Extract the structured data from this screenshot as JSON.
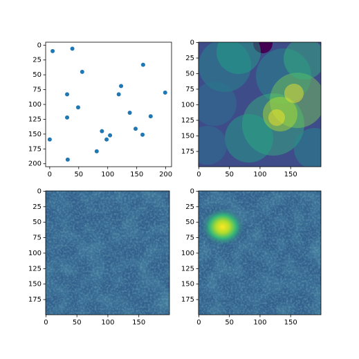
{
  "chart_data": [
    {
      "type": "scatter",
      "color": "#1f77b4",
      "x": [
        5,
        39,
        56,
        161,
        30,
        123,
        119,
        199,
        49,
        138,
        30,
        174,
        148,
        90,
        104,
        160,
        98,
        0,
        81,
        31
      ],
      "values": [
        10,
        6,
        45,
        33,
        83,
        69,
        83,
        80,
        105,
        114,
        122,
        120,
        141,
        145,
        152,
        151,
        159,
        159,
        179,
        193
      ],
      "xlim": [
        -7,
        210
      ],
      "ylim": [
        205,
        -5
      ],
      "xticks": [
        0,
        50,
        100,
        150,
        200
      ],
      "yticks": [
        0,
        25,
        50,
        75,
        100,
        125,
        150,
        175,
        200
      ]
    },
    {
      "type": "image",
      "xlim": [
        -0.5,
        199.5
      ],
      "ylim": [
        199.5,
        -0.5
      ],
      "xticks": [
        0,
        50,
        100,
        150
      ],
      "yticks": [
        0,
        25,
        50,
        75,
        100,
        125,
        150,
        175
      ]
    },
    {
      "type": "image",
      "xlim": [
        -0.5,
        199.5
      ],
      "ylim": [
        199.5,
        -0.5
      ],
      "xticks": [
        0,
        50,
        100,
        150
      ],
      "yticks": [
        0,
        25,
        50,
        75,
        100,
        125,
        150,
        175
      ]
    },
    {
      "type": "image",
      "xlim": [
        -0.5,
        199.5
      ],
      "ylim": [
        199.5,
        -0.5
      ],
      "xticks": [
        0,
        50,
        100,
        150
      ],
      "yticks": [
        0,
        25,
        50,
        75,
        100,
        125,
        150,
        175
      ]
    }
  ]
}
